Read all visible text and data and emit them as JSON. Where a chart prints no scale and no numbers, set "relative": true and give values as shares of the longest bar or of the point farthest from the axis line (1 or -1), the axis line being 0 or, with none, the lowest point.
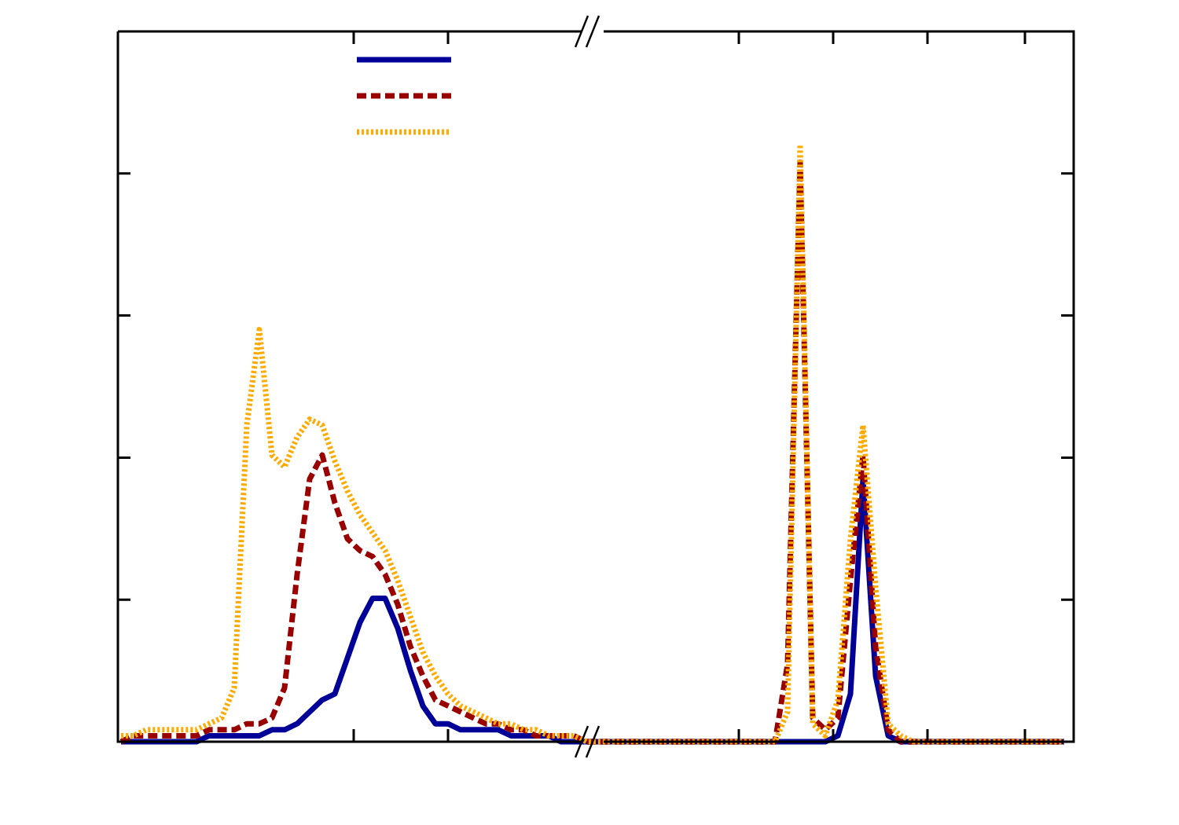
{
  "chart_data": {
    "type": "line",
    "relative": true,
    "categories": [
      null,
      null,
      null,
      null,
      null,
      null,
      null,
      null,
      null,
      null,
      null,
      null,
      null,
      null,
      null,
      null,
      null,
      null,
      null,
      null,
      null,
      null,
      null,
      null,
      null,
      null,
      null,
      null,
      null,
      null,
      null,
      null,
      null,
      null,
      null,
      null,
      null,
      null,
      null,
      null,
      null,
      null,
      null,
      null,
      null,
      null,
      null,
      null,
      null,
      null,
      null,
      null,
      null,
      null,
      null,
      null,
      null,
      null,
      null,
      null,
      null,
      null,
      null,
      null,
      null,
      null,
      null,
      null,
      null,
      null,
      null,
      null,
      null,
      null,
      null,
      null
    ],
    "series": [
      {
        "color": "#000099",
        "line_style": "solid",
        "values": [
          0,
          0,
          0,
          0,
          0,
          0,
          0,
          0.01,
          0.01,
          0.01,
          0.01,
          0.01,
          0.02,
          0.02,
          0.03,
          0.05,
          0.07,
          0.08,
          0.14,
          0.2,
          0.24,
          0.24,
          0.19,
          0.12,
          0.06,
          0.03,
          0.03,
          0.02,
          0.02,
          0.02,
          0.02,
          0.01,
          0.01,
          0.01,
          0.01,
          0,
          0,
          0,
          0,
          0,
          0,
          0,
          0,
          0,
          0,
          0,
          0,
          0,
          0,
          0,
          0,
          0,
          0,
          0,
          0,
          0,
          0,
          0.01,
          0.08,
          0.44,
          0.11,
          0.01,
          0,
          0,
          0,
          0,
          0,
          0,
          0,
          0,
          0,
          0,
          0,
          0,
          0,
          0
        ]
      },
      {
        "color": "#990000",
        "line_style": "dashed",
        "values": [
          0,
          0.01,
          0.01,
          0.01,
          0.01,
          0.01,
          0.01,
          0.02,
          0.02,
          0.02,
          0.03,
          0.03,
          0.04,
          0.09,
          0.28,
          0.44,
          0.48,
          0.4,
          0.34,
          0.32,
          0.31,
          0.28,
          0.23,
          0.16,
          0.11,
          0.07,
          0.06,
          0.05,
          0.04,
          0.03,
          0.03,
          0.02,
          0.02,
          0.01,
          0.01,
          0.01,
          0.01,
          0,
          0,
          0,
          0,
          0,
          0,
          0,
          0,
          0,
          0,
          0,
          0,
          0,
          0,
          0,
          0,
          0.13,
          0.97,
          0.04,
          0.02,
          0.04,
          0.27,
          0.48,
          0.16,
          0.02,
          0,
          0,
          0,
          0,
          0,
          0,
          0,
          0,
          0,
          0,
          0,
          0,
          0,
          0
        ]
      },
      {
        "color": "#ffaa00",
        "line_style": "dotted",
        "values": [
          0.01,
          0.01,
          0.02,
          0.02,
          0.02,
          0.02,
          0.02,
          0.03,
          0.04,
          0.09,
          0.53,
          0.69,
          0.48,
          0.46,
          0.51,
          0.54,
          0.53,
          0.47,
          0.42,
          0.38,
          0.35,
          0.32,
          0.27,
          0.21,
          0.15,
          0.11,
          0.08,
          0.06,
          0.05,
          0.04,
          0.03,
          0.03,
          0.02,
          0.02,
          0.01,
          0.01,
          0.01,
          0,
          0,
          0,
          0,
          0,
          0,
          0,
          0,
          0,
          0,
          0,
          0,
          0,
          0,
          0,
          0,
          0.05,
          1,
          0.03,
          0.01,
          0.07,
          0.34,
          0.53,
          0.26,
          0.03,
          0.01,
          0,
          0,
          0,
          0,
          0,
          0,
          0,
          0,
          0,
          0,
          0,
          0,
          0
        ]
      }
    ]
  }
}
